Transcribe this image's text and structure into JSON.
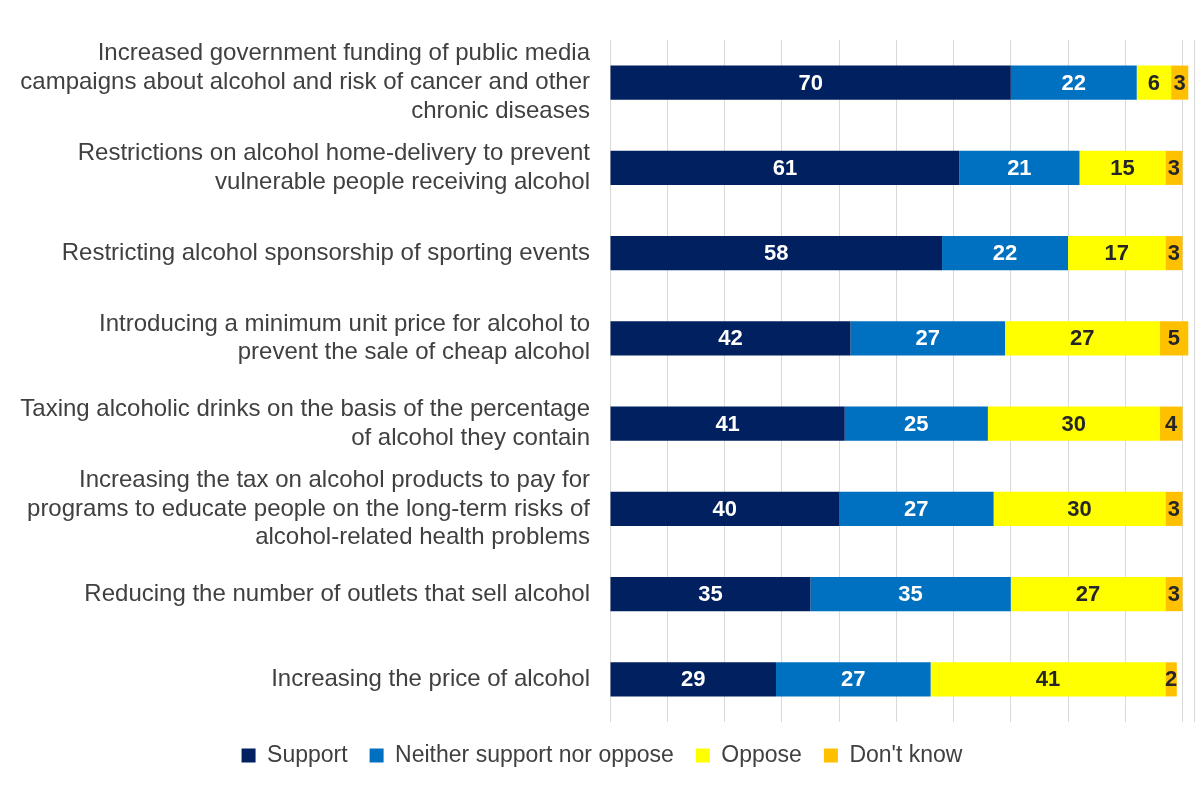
{
  "chart_data": {
    "type": "bar",
    "orientation": "horizontal",
    "stacked": true,
    "data_labels": true,
    "grid": "x",
    "legend": "bottom",
    "tick_labels": "y",
    "categories": [
      "Increased government funding of public media campaigns about alcohol and risk of cancer and other chronic diseases",
      "Restrictions on alcohol home-delivery to prevent vulnerable people receiving alcohol",
      "Restricting alcohol sponsorship of sporting events",
      "Introducing a minimum unit price for alcohol to prevent the sale of cheap alcohol",
      "Taxing alcoholic drinks on the basis of the percentage of alcohol they contain",
      "Increasing the tax on alcohol products to pay for programs to educate people on the long-term risks of alcohol-related health problems",
      "Reducing the number of outlets that sell alcohol",
      "Increasing the price of alcohol"
    ],
    "xlim": [
      0,
      102
    ],
    "xticks": [
      {
        "value": 0,
        "label": null
      },
      {
        "value": 10,
        "label": null
      },
      {
        "value": 20,
        "label": null
      },
      {
        "value": 30,
        "label": null
      },
      {
        "value": 40,
        "label": null
      },
      {
        "value": 50,
        "label": null
      },
      {
        "value": 60,
        "label": null
      },
      {
        "value": 70,
        "label": null
      },
      {
        "value": 80,
        "label": null
      },
      {
        "value": 90,
        "label": null
      },
      {
        "value": 100,
        "label": null
      },
      {
        "value": 102,
        "label": null
      }
    ],
    "series": [
      {
        "name": "Support",
        "color": "#002060",
        "values": [
          70,
          61,
          58,
          42,
          41,
          40,
          35,
          29
        ]
      },
      {
        "name": "Neither support nor oppose",
        "color": "#0070c0",
        "values": [
          22,
          21,
          22,
          27,
          25,
          27,
          35,
          27
        ]
      },
      {
        "name": "Oppose",
        "color": "#ffff00",
        "values": [
          6,
          15,
          17,
          27,
          30,
          30,
          27,
          41
        ]
      },
      {
        "name": "Don't know",
        "color": "#ffc000",
        "values": [
          3,
          3,
          3,
          5,
          4,
          3,
          3,
          2
        ]
      }
    ]
  }
}
